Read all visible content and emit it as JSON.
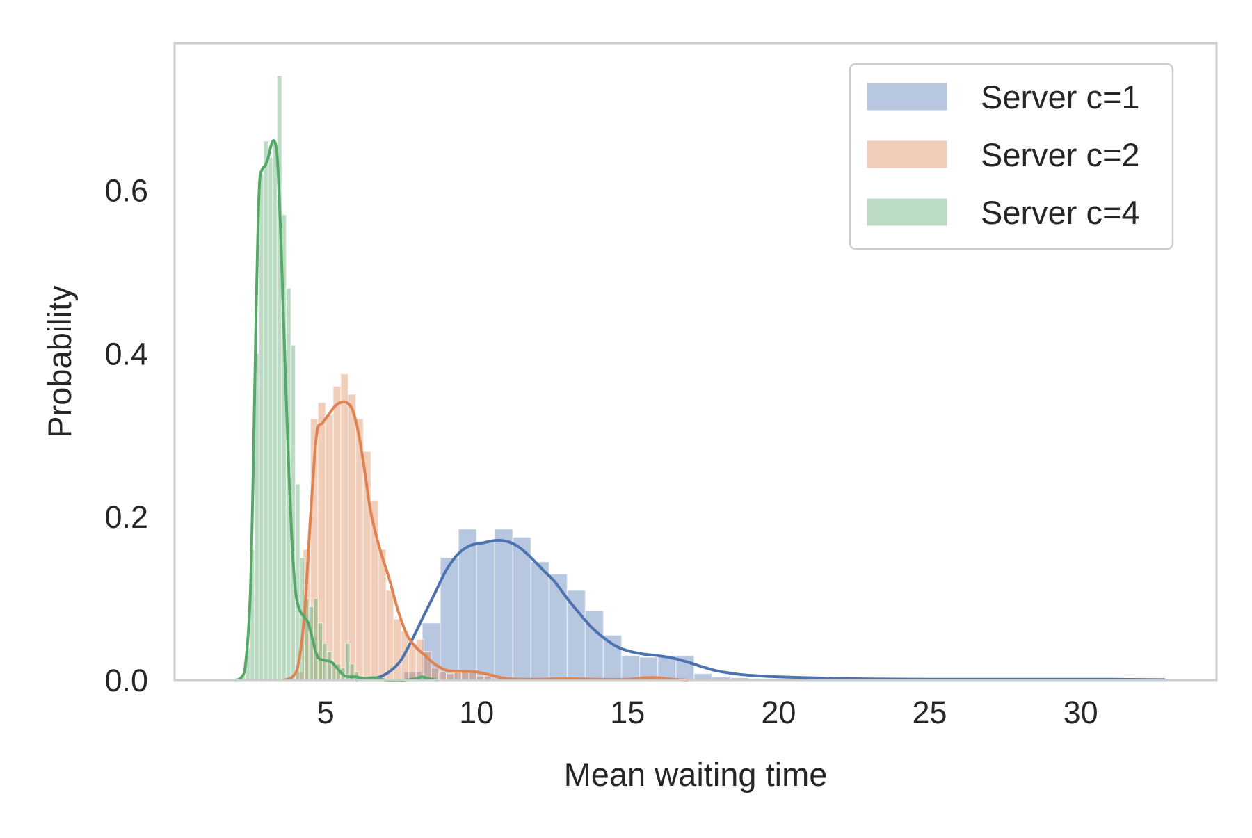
{
  "chart_data": {
    "type": "histogram",
    "title": "",
    "xlabel": "Mean waiting time",
    "ylabel": "Probability",
    "xlim": [
      0.0,
      34.5
    ],
    "ylim": [
      0.0,
      0.78
    ],
    "xticks": [
      5,
      10,
      15,
      20,
      25,
      30
    ],
    "yticks": [
      0.0,
      0.2,
      0.4,
      0.6
    ],
    "ytick_labels": [
      "0.0",
      "0.2",
      "0.4",
      "0.6"
    ],
    "grid": false,
    "legend_position": "top-right",
    "series": [
      {
        "name": "Server c=1",
        "color": "#4c72b0",
        "bins": [
          {
            "x0": 7.6,
            "x1": 8.2,
            "y": 0.01
          },
          {
            "x0": 8.2,
            "x1": 8.8,
            "y": 0.07
          },
          {
            "x0": 8.8,
            "x1": 9.4,
            "y": 0.15
          },
          {
            "x0": 9.4,
            "x1": 10.0,
            "y": 0.185
          },
          {
            "x0": 10.0,
            "x1": 10.6,
            "y": 0.17
          },
          {
            "x0": 10.6,
            "x1": 11.2,
            "y": 0.185
          },
          {
            "x0": 11.2,
            "x1": 11.8,
            "y": 0.175
          },
          {
            "x0": 11.8,
            "x1": 12.4,
            "y": 0.145
          },
          {
            "x0": 12.4,
            "x1": 13.0,
            "y": 0.13
          },
          {
            "x0": 13.0,
            "x1": 13.6,
            "y": 0.11
          },
          {
            "x0": 13.6,
            "x1": 14.2,
            "y": 0.085
          },
          {
            "x0": 14.2,
            "x1": 14.8,
            "y": 0.055
          },
          {
            "x0": 14.8,
            "x1": 15.4,
            "y": 0.03
          },
          {
            "x0": 15.4,
            "x1": 16.0,
            "y": 0.028
          },
          {
            "x0": 16.0,
            "x1": 16.6,
            "y": 0.03
          },
          {
            "x0": 16.6,
            "x1": 17.2,
            "y": 0.03
          },
          {
            "x0": 17.2,
            "x1": 17.8,
            "y": 0.008
          },
          {
            "x0": 17.8,
            "x1": 18.4,
            "y": 0.004
          },
          {
            "x0": 18.4,
            "x1": 19.0,
            "y": 0.003
          },
          {
            "x0": 19.0,
            "x1": 19.6,
            "y": 0.002
          },
          {
            "x0": 19.6,
            "x1": 20.2,
            "y": 0.002
          },
          {
            "x0": 20.2,
            "x1": 20.8,
            "y": 0.002
          },
          {
            "x0": 20.8,
            "x1": 21.4,
            "y": 0.001
          }
        ],
        "kde": [
          [
            6.0,
            0.0
          ],
          [
            6.8,
            0.004
          ],
          [
            7.4,
            0.02
          ],
          [
            7.8,
            0.045
          ],
          [
            8.2,
            0.075
          ],
          [
            8.6,
            0.105
          ],
          [
            9.0,
            0.135
          ],
          [
            9.4,
            0.155
          ],
          [
            9.8,
            0.165
          ],
          [
            10.2,
            0.168
          ],
          [
            10.6,
            0.171
          ],
          [
            11.0,
            0.17
          ],
          [
            11.4,
            0.163
          ],
          [
            11.8,
            0.15
          ],
          [
            12.2,
            0.135
          ],
          [
            12.6,
            0.12
          ],
          [
            13.0,
            0.1
          ],
          [
            13.4,
            0.082
          ],
          [
            13.8,
            0.065
          ],
          [
            14.2,
            0.052
          ],
          [
            14.6,
            0.042
          ],
          [
            15.0,
            0.036
          ],
          [
            15.5,
            0.032
          ],
          [
            16.0,
            0.03
          ],
          [
            16.5,
            0.027
          ],
          [
            17.0,
            0.022
          ],
          [
            17.5,
            0.016
          ],
          [
            18.0,
            0.011
          ],
          [
            18.5,
            0.008
          ],
          [
            19.0,
            0.006
          ],
          [
            20.0,
            0.004
          ],
          [
            21.0,
            0.003
          ],
          [
            22.0,
            0.002
          ],
          [
            23.0,
            0.0015
          ],
          [
            25.0,
            0.001
          ],
          [
            27.0,
            0.001
          ],
          [
            29.0,
            0.001
          ],
          [
            31.0,
            0.001
          ],
          [
            32.8,
            0.0005
          ]
        ]
      },
      {
        "name": "Server c=2",
        "color": "#dd8452",
        "bins": [
          {
            "x0": 4.0,
            "x1": 4.25,
            "y": 0.01
          },
          {
            "x0": 4.25,
            "x1": 4.5,
            "y": 0.16
          },
          {
            "x0": 4.5,
            "x1": 4.75,
            "y": 0.32
          },
          {
            "x0": 4.75,
            "x1": 5.0,
            "y": 0.34
          },
          {
            "x0": 5.0,
            "x1": 5.25,
            "y": 0.325
          },
          {
            "x0": 5.25,
            "x1": 5.5,
            "y": 0.36
          },
          {
            "x0": 5.5,
            "x1": 5.75,
            "y": 0.375
          },
          {
            "x0": 5.75,
            "x1": 6.0,
            "y": 0.35
          },
          {
            "x0": 6.0,
            "x1": 6.25,
            "y": 0.32
          },
          {
            "x0": 6.25,
            "x1": 6.5,
            "y": 0.28
          },
          {
            "x0": 6.5,
            "x1": 6.75,
            "y": 0.22
          },
          {
            "x0": 6.75,
            "x1": 7.0,
            "y": 0.16
          },
          {
            "x0": 7.0,
            "x1": 7.25,
            "y": 0.11
          },
          {
            "x0": 7.25,
            "x1": 7.5,
            "y": 0.075
          },
          {
            "x0": 7.5,
            "x1": 7.75,
            "y": 0.06
          },
          {
            "x0": 7.75,
            "x1": 8.0,
            "y": 0.045
          },
          {
            "x0": 8.0,
            "x1": 8.25,
            "y": 0.05
          },
          {
            "x0": 8.25,
            "x1": 8.5,
            "y": 0.035
          },
          {
            "x0": 8.5,
            "x1": 8.75,
            "y": 0.015
          },
          {
            "x0": 8.75,
            "x1": 9.0,
            "y": 0.01
          },
          {
            "x0": 9.0,
            "x1": 9.25,
            "y": 0.008
          },
          {
            "x0": 9.25,
            "x1": 9.5,
            "y": 0.01
          },
          {
            "x0": 9.5,
            "x1": 9.75,
            "y": 0.012
          },
          {
            "x0": 9.75,
            "x1": 10.0,
            "y": 0.01
          },
          {
            "x0": 10.0,
            "x1": 10.25,
            "y": 0.005
          },
          {
            "x0": 10.25,
            "x1": 10.5,
            "y": 0.005
          },
          {
            "x0": 15.75,
            "x1": 16.0,
            "y": 0.003
          }
        ],
        "kde": [
          [
            3.6,
            0.0
          ],
          [
            3.9,
            0.004
          ],
          [
            4.1,
            0.02
          ],
          [
            4.3,
            0.08
          ],
          [
            4.5,
            0.2
          ],
          [
            4.7,
            0.3
          ],
          [
            4.9,
            0.315
          ],
          [
            5.1,
            0.325
          ],
          [
            5.3,
            0.335
          ],
          [
            5.5,
            0.34
          ],
          [
            5.7,
            0.34
          ],
          [
            5.9,
            0.33
          ],
          [
            6.1,
            0.3
          ],
          [
            6.3,
            0.255
          ],
          [
            6.5,
            0.205
          ],
          [
            6.8,
            0.16
          ],
          [
            7.1,
            0.125
          ],
          [
            7.4,
            0.085
          ],
          [
            7.7,
            0.055
          ],
          [
            8.0,
            0.04
          ],
          [
            8.3,
            0.03
          ],
          [
            8.6,
            0.02
          ],
          [
            9.0,
            0.012
          ],
          [
            9.5,
            0.011
          ],
          [
            10.0,
            0.01
          ],
          [
            10.5,
            0.006
          ],
          [
            11.0,
            0.002
          ],
          [
            12.0,
            0.001
          ],
          [
            13.0,
            0.002
          ],
          [
            14.0,
            0.001
          ],
          [
            15.0,
            0.001
          ],
          [
            15.6,
            0.003
          ],
          [
            16.0,
            0.003
          ],
          [
            16.5,
            0.001
          ],
          [
            17.0,
            0.0
          ]
        ]
      },
      {
        "name": "Server c=4",
        "color": "#55a868",
        "bins": [
          {
            "x0": 2.2,
            "x1": 2.35,
            "y": 0.005
          },
          {
            "x0": 2.35,
            "x1": 2.5,
            "y": 0.04
          },
          {
            "x0": 2.5,
            "x1": 2.65,
            "y": 0.16
          },
          {
            "x0": 2.65,
            "x1": 2.8,
            "y": 0.4
          },
          {
            "x0": 2.8,
            "x1": 2.95,
            "y": 0.62
          },
          {
            "x0": 2.95,
            "x1": 3.1,
            "y": 0.66
          },
          {
            "x0": 3.1,
            "x1": 3.25,
            "y": 0.64
          },
          {
            "x0": 3.25,
            "x1": 3.4,
            "y": 0.66
          },
          {
            "x0": 3.4,
            "x1": 3.55,
            "y": 0.74
          },
          {
            "x0": 3.55,
            "x1": 3.7,
            "y": 0.57
          },
          {
            "x0": 3.7,
            "x1": 3.85,
            "y": 0.48
          },
          {
            "x0": 3.85,
            "x1": 4.0,
            "y": 0.41
          },
          {
            "x0": 4.0,
            "x1": 4.15,
            "y": 0.24
          },
          {
            "x0": 4.15,
            "x1": 4.3,
            "y": 0.15
          },
          {
            "x0": 4.3,
            "x1": 4.45,
            "y": 0.1
          },
          {
            "x0": 4.45,
            "x1": 4.6,
            "y": 0.09
          },
          {
            "x0": 4.6,
            "x1": 4.75,
            "y": 0.1
          },
          {
            "x0": 4.75,
            "x1": 4.9,
            "y": 0.07
          },
          {
            "x0": 4.9,
            "x1": 5.05,
            "y": 0.045
          },
          {
            "x0": 5.05,
            "x1": 5.2,
            "y": 0.035
          },
          {
            "x0": 5.2,
            "x1": 5.35,
            "y": 0.02
          },
          {
            "x0": 5.35,
            "x1": 5.5,
            "y": 0.02
          },
          {
            "x0": 5.5,
            "x1": 5.65,
            "y": 0.015
          },
          {
            "x0": 5.65,
            "x1": 5.8,
            "y": 0.045
          },
          {
            "x0": 5.8,
            "x1": 5.95,
            "y": 0.02
          },
          {
            "x0": 5.95,
            "x1": 6.1,
            "y": 0.01
          },
          {
            "x0": 6.1,
            "x1": 6.25,
            "y": 0.005
          },
          {
            "x0": 6.5,
            "x1": 6.65,
            "y": 0.003
          },
          {
            "x0": 8.2,
            "x1": 8.35,
            "y": 0.004
          }
        ],
        "kde": [
          [
            2.0,
            0.0
          ],
          [
            2.2,
            0.003
          ],
          [
            2.35,
            0.02
          ],
          [
            2.5,
            0.1
          ],
          [
            2.6,
            0.25
          ],
          [
            2.7,
            0.45
          ],
          [
            2.8,
            0.6
          ],
          [
            2.9,
            0.625
          ],
          [
            3.0,
            0.63
          ],
          [
            3.1,
            0.64
          ],
          [
            3.2,
            0.655
          ],
          [
            3.3,
            0.66
          ],
          [
            3.4,
            0.64
          ],
          [
            3.5,
            0.56
          ],
          [
            3.6,
            0.45
          ],
          [
            3.7,
            0.34
          ],
          [
            3.8,
            0.24
          ],
          [
            3.9,
            0.16
          ],
          [
            4.0,
            0.11
          ],
          [
            4.1,
            0.09
          ],
          [
            4.2,
            0.082
          ],
          [
            4.4,
            0.072
          ],
          [
            4.5,
            0.06
          ],
          [
            4.6,
            0.045
          ],
          [
            4.7,
            0.032
          ],
          [
            4.8,
            0.026
          ],
          [
            5.0,
            0.024
          ],
          [
            5.2,
            0.022
          ],
          [
            5.4,
            0.014
          ],
          [
            5.6,
            0.006
          ],
          [
            5.8,
            0.004
          ],
          [
            6.0,
            0.004
          ],
          [
            6.3,
            0.002
          ],
          [
            6.6,
            0.003
          ],
          [
            7.0,
            0.0
          ],
          [
            7.6,
            0.0
          ],
          [
            8.0,
            0.002
          ],
          [
            8.2,
            0.004
          ],
          [
            8.4,
            0.002
          ],
          [
            8.7,
            0.0
          ]
        ]
      }
    ]
  }
}
